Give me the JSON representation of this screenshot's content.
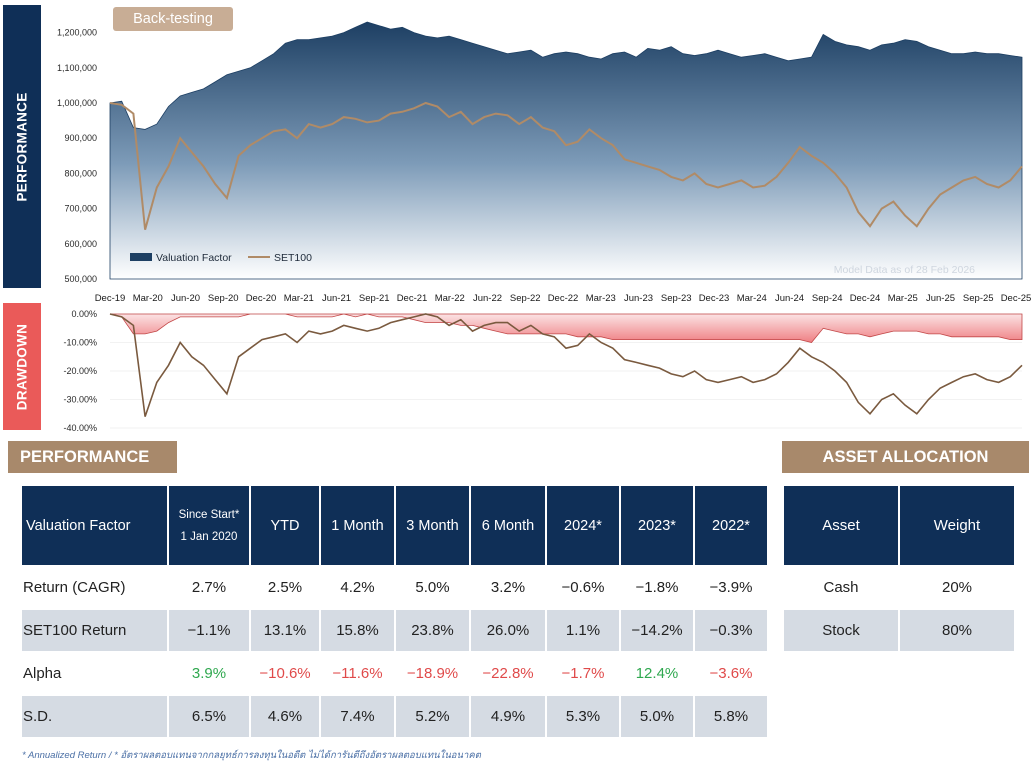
{
  "badge": "Back-testing",
  "labels": {
    "performance": "PERFORMANCE",
    "drawdown": "DRAWDOWN"
  },
  "chart_data": [
    {
      "type": "area",
      "name": "performance",
      "y_ticks": [
        "500,000",
        "600,000",
        "700,000",
        "800,000",
        "900,000",
        "1,000,000",
        "1,100,000",
        "1,200,000"
      ],
      "ylim": [
        500000,
        1250000
      ],
      "x_ticks": [
        "Dec-19",
        "Mar-20",
        "Jun-20",
        "Sep-20",
        "Dec-20",
        "Mar-21",
        "Jun-21",
        "Sep-21",
        "Dec-21",
        "Mar-22",
        "Jun-22",
        "Sep-22",
        "Dec-22",
        "Mar-23",
        "Jun-23",
        "Sep-23",
        "Dec-23",
        "Mar-24",
        "Jun-24",
        "Sep-24",
        "Dec-24",
        "Mar-25",
        "Jun-25",
        "Sep-25",
        "Dec-25"
      ],
      "legend": [
        "Valuation Factor",
        "SET100"
      ],
      "note": "Model Data as of 28 Feb 2026",
      "colors": {
        "area_top": "#1d3f63",
        "area_bottom": "#ffffff",
        "set100": "#b08b67"
      },
      "series": [
        {
          "name": "Valuation Factor",
          "values": [
            1000000,
            1005000,
            930000,
            925000,
            940000,
            990000,
            1020000,
            1030000,
            1040000,
            1060000,
            1080000,
            1090000,
            1100000,
            1120000,
            1140000,
            1170000,
            1180000,
            1180000,
            1185000,
            1190000,
            1200000,
            1215000,
            1230000,
            1220000,
            1210000,
            1215000,
            1200000,
            1190000,
            1185000,
            1190000,
            1180000,
            1170000,
            1160000,
            1150000,
            1140000,
            1145000,
            1150000,
            1130000,
            1140000,
            1145000,
            1140000,
            1130000,
            1125000,
            1140000,
            1145000,
            1130000,
            1155000,
            1150000,
            1160000,
            1140000,
            1135000,
            1140000,
            1150000,
            1140000,
            1130000,
            1135000,
            1140000,
            1130000,
            1120000,
            1125000,
            1130000,
            1195000,
            1175000,
            1165000,
            1160000,
            1150000,
            1165000,
            1170000,
            1180000,
            1175000,
            1160000,
            1150000,
            1140000,
            1140000,
            1145000,
            1140000,
            1140000,
            1135000,
            1130000
          ]
        },
        {
          "name": "SET100",
          "values": [
            1000000,
            995000,
            970000,
            640000,
            760000,
            820000,
            900000,
            860000,
            820000,
            770000,
            730000,
            850000,
            880000,
            900000,
            920000,
            925000,
            900000,
            940000,
            930000,
            940000,
            960000,
            955000,
            945000,
            950000,
            970000,
            975000,
            985000,
            1000000,
            990000,
            960000,
            975000,
            940000,
            960000,
            970000,
            965000,
            940000,
            960000,
            930000,
            920000,
            880000,
            890000,
            925000,
            900000,
            880000,
            840000,
            830000,
            820000,
            810000,
            790000,
            780000,
            800000,
            770000,
            760000,
            770000,
            780000,
            760000,
            765000,
            790000,
            830000,
            875000,
            850000,
            830000,
            800000,
            760000,
            690000,
            650000,
            700000,
            720000,
            680000,
            650000,
            700000,
            740000,
            760000,
            780000,
            790000,
            770000,
            760000,
            780000,
            820000
          ]
        }
      ]
    },
    {
      "type": "area",
      "name": "drawdown",
      "y_ticks": [
        "0.00%",
        "-10.00%",
        "-20.00%",
        "-30.00%",
        "-40.00%"
      ],
      "ylim": [
        -40,
        0
      ],
      "colors": {
        "area": "#f3a3a6",
        "area_line": "#c24848",
        "set100": "#7a5a3f"
      },
      "series": [
        {
          "name": "Valuation Factor",
          "values": [
            0,
            -1,
            -7,
            -7,
            -6,
            -3,
            -1,
            -1,
            -1,
            -1,
            -1,
            -1,
            0,
            0,
            0,
            0,
            -1,
            -1,
            -1,
            -1,
            0,
            -1,
            0,
            -1,
            -1,
            -1,
            -2,
            -3,
            -3,
            -3,
            -4,
            -4,
            -5,
            -6,
            -7,
            -7,
            -7,
            -7,
            -7,
            -7,
            -8,
            -8,
            -8,
            -9,
            -9,
            -9,
            -9,
            -9,
            -9,
            -9,
            -9,
            -9,
            -9,
            -9,
            -9,
            -9,
            -9,
            -9,
            -9,
            -9,
            -10,
            -5,
            -6,
            -7,
            -7,
            -8,
            -7,
            -6,
            -6,
            -6,
            -7,
            -7,
            -8,
            -8,
            -8,
            -8,
            -8,
            -9,
            -9
          ]
        },
        {
          "name": "SET100",
          "values": [
            0,
            -1,
            -4,
            -36,
            -24,
            -18,
            -10,
            -15,
            -18,
            -23,
            -28,
            -15,
            -12,
            -9,
            -8,
            -7,
            -10,
            -6,
            -7,
            -6,
            -4,
            -5,
            -6,
            -5,
            -3,
            -2,
            -1,
            0,
            -1,
            -4,
            -2,
            -6,
            -4,
            -3,
            -3,
            -6,
            -4,
            -7,
            -8,
            -12,
            -11,
            -7,
            -10,
            -12,
            -16,
            -17,
            -18,
            -19,
            -21,
            -22,
            -20,
            -23,
            -24,
            -23,
            -22,
            -24,
            -23,
            -21,
            -17,
            -12,
            -15,
            -17,
            -20,
            -24,
            -31,
            -35,
            -30,
            -28,
            -32,
            -35,
            -30,
            -26,
            -24,
            -22,
            -21,
            -23,
            -24,
            -22,
            -18
          ]
        }
      ]
    }
  ],
  "performance": {
    "title": "PERFORMANCE",
    "headers": {
      "name": "Valuation Factor",
      "since_line1": "Since Start*",
      "since_line2": "1 Jan 2020",
      "ytd": "YTD",
      "m1": "1 Month",
      "m3": "3 Month",
      "m6": "6 Month",
      "y2024": "2024*",
      "y2023": "2023*",
      "y2022": "2022*"
    },
    "rows": [
      {
        "label": "Return (CAGR)",
        "cells": [
          "2.7%",
          "2.5%",
          "4.2%",
          "5.0%",
          "3.2%",
          "−0.6%",
          "−1.8%",
          "−3.9%"
        ]
      },
      {
        "label": "SET100 Return",
        "cells": [
          "−1.1%",
          "13.1%",
          "15.8%",
          "23.8%",
          "26.0%",
          "1.1%",
          "−14.2%",
          "−0.3%"
        ]
      },
      {
        "label": "Alpha",
        "cells": [
          "3.9%",
          "−10.6%",
          "−11.6%",
          "−18.9%",
          "−22.8%",
          "−1.7%",
          "12.4%",
          "−3.6%"
        ]
      },
      {
        "label": "S.D.",
        "cells": [
          "6.5%",
          "4.6%",
          "7.4%",
          "5.2%",
          "4.9%",
          "5.3%",
          "5.0%",
          "5.8%"
        ]
      }
    ]
  },
  "allocation": {
    "title": "ASSET ALLOCATION",
    "headers": {
      "asset": "Asset",
      "weight": "Weight"
    },
    "rows": [
      {
        "asset": "Cash",
        "weight": "20%"
      },
      {
        "asset": "Stock",
        "weight": "80%"
      }
    ]
  },
  "footnote": "* Annualized Return / * อัตราผลตอบแทนจากกลยุทธ์การลงทุนในอดีต ไม่ได้การันตีถึงอัตราผลตอบแทนในอนาคต"
}
